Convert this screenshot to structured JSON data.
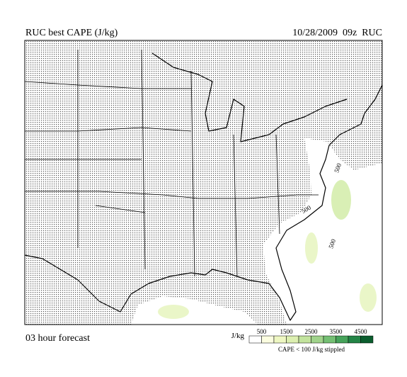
{
  "header": {
    "title": "RUC best CAPE (J/kg)",
    "valid": "10/28/2009  09z  RUC"
  },
  "map": {
    "contour_labels": [
      "500",
      "500",
      "500"
    ]
  },
  "footer": {
    "forecast": "03 hour forecast",
    "legend": {
      "unit": "J/kg",
      "ticks": [
        "500",
        "1500",
        "2500",
        "3500",
        "4500"
      ],
      "note": "CAPE < 100 J/kg stippled"
    }
  }
}
